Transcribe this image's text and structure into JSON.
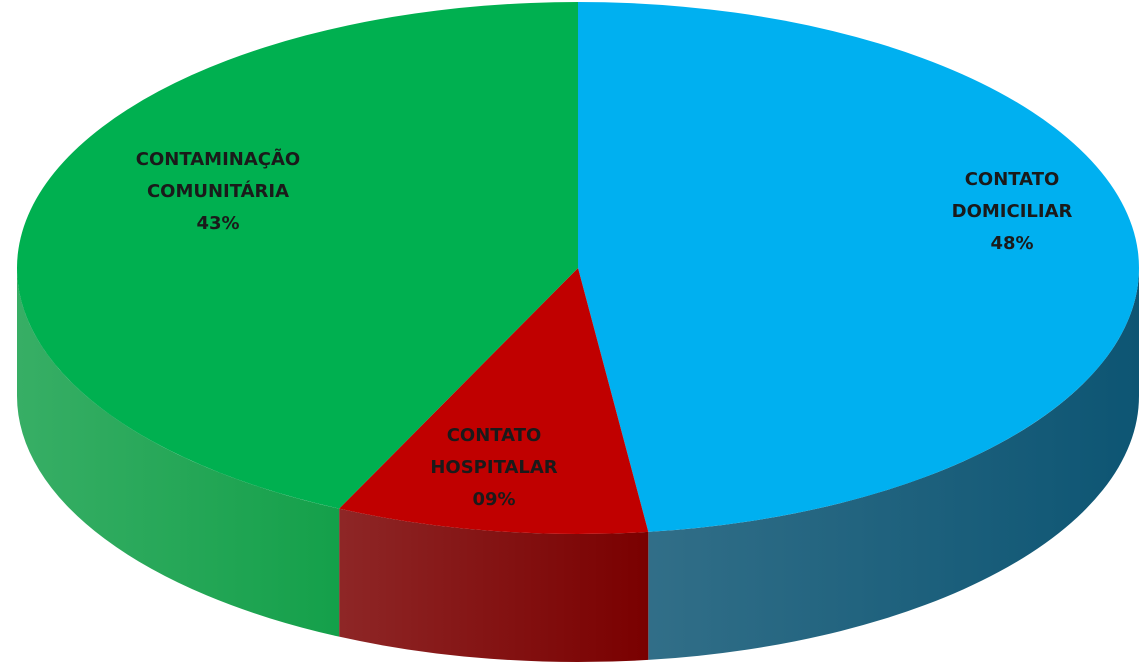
{
  "chart_data": {
    "type": "pie",
    "categories": [
      "CONTATO DOMICILIAR",
      "CONTATO HOSPITALAR",
      "CONTAMINAÇÃO COMUNITÁRIA"
    ],
    "values": [
      48,
      9,
      43
    ],
    "value_labels": [
      "48%",
      "09%",
      "43%"
    ],
    "colors": [
      "#00b0f0",
      "#c00000",
      "#00b050"
    ],
    "side_colors": [
      "#0d5573",
      "#7a0000",
      "#14a04a"
    ]
  }
}
